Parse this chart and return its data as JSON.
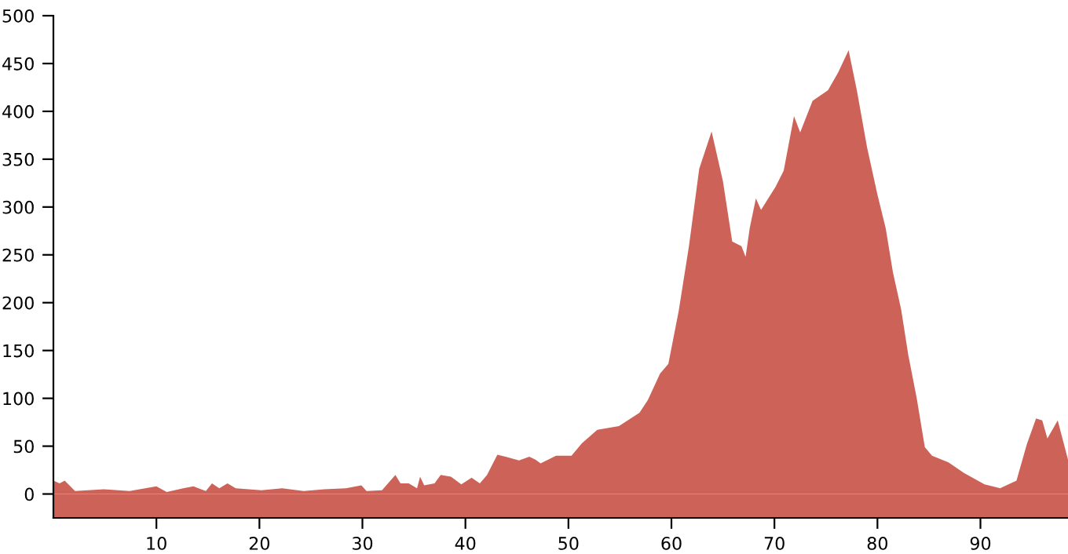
{
  "chart_data": {
    "type": "area",
    "color": "#cd6358",
    "xlim": [
      0,
      98.5
    ],
    "ylim": [
      -25,
      500
    ],
    "xticks": [
      10,
      20,
      30,
      40,
      50,
      60,
      70,
      80,
      90
    ],
    "yticks": [
      0,
      50,
      100,
      150,
      200,
      250,
      300,
      350,
      400,
      450,
      500
    ],
    "grid": false,
    "legend": false,
    "bands": [
      {
        "axis": "y",
        "from": -25,
        "to": 0,
        "color": "#cd6358"
      }
    ],
    "x": [
      0,
      0.6,
      1.1,
      2.1,
      4.9,
      7.4,
      10,
      11,
      12.6,
      13.6,
      14.8,
      15.4,
      16.1,
      16.9,
      17.7,
      20.2,
      22.2,
      24.3,
      26.3,
      28.4,
      29.9,
      30.4,
      31.9,
      32.4,
      33.2,
      33.7,
      34.5,
      35.3,
      35.6,
      36,
      37,
      37.6,
      38.6,
      39.6,
      40.6,
      41.4,
      42.1,
      43.1,
      43.9,
      45.2,
      46.2,
      46.8,
      47.3,
      48.8,
      50.3,
      51.3,
      52.8,
      54.9,
      56.9,
      57.7,
      58.9,
      59.7,
      60.7,
      61.7,
      62.7,
      63.9,
      65,
      65.9,
      66.8,
      67.2,
      67.6,
      68.2,
      68.7,
      70.1,
      70.9,
      71.9,
      72.5,
      73.7,
      75.2,
      76.2,
      77.2,
      78,
      79,
      80,
      80.8,
      81.5,
      82.3,
      83,
      83.8,
      84.6,
      85.3,
      86.9,
      88.4,
      90.4,
      91.9,
      93.5,
      94.5,
      95.4,
      96,
      96.5,
      97.5,
      98.5
    ],
    "values": [
      14,
      11,
      14,
      3,
      5,
      3,
      8,
      2,
      6,
      8,
      3,
      11,
      6,
      11,
      6,
      4,
      6,
      3,
      5,
      6,
      9,
      3,
      4,
      10,
      20,
      11,
      11,
      6,
      18,
      9,
      11,
      20,
      18,
      10,
      17,
      11,
      20,
      41,
      39,
      35,
      39,
      36,
      32,
      40,
      40,
      53,
      67,
      71,
      85,
      98,
      126,
      136,
      191,
      259,
      340,
      379,
      327,
      264,
      259,
      248,
      278,
      309,
      297,
      321,
      338,
      395,
      378,
      411,
      422,
      441,
      464,
      422,
      362,
      313,
      278,
      232,
      193,
      145,
      101,
      49,
      40,
      33,
      22,
      10,
      6,
      14,
      52,
      79,
      77,
      58,
      77,
      36
    ]
  }
}
